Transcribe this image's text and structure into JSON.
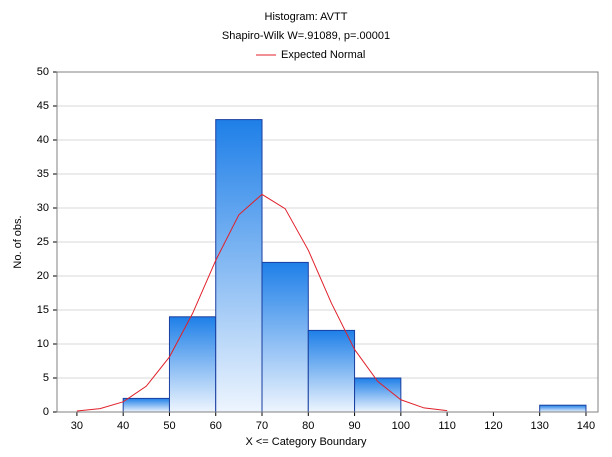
{
  "chart_data": {
    "type": "histogram",
    "title": "Histogram: AVTT",
    "subtitle": "Shapiro-Wilk W=.91089, p=.00001",
    "x_label": "X <= Category Boundary",
    "y_label": "No. of obs.",
    "bins": [
      40,
      50,
      60,
      70,
      80,
      90,
      100,
      110,
      120,
      130,
      140
    ],
    "counts": [
      2,
      14,
      43,
      22,
      12,
      5,
      0,
      0,
      0,
      1
    ],
    "color": "#1e7fe8",
    "series": [
      {
        "name": "Expected Normal",
        "color": "#e0202a",
        "x": [
          30,
          35,
          40,
          45,
          50,
          55,
          60,
          65,
          70,
          75,
          80,
          85,
          90,
          95,
          100,
          105,
          110
        ],
        "values": [
          0.15,
          0.5,
          1.5,
          3.8,
          8.1,
          14.5,
          22.3,
          29.0,
          32.0,
          29.9,
          23.8,
          16.0,
          9.2,
          4.5,
          1.8,
          0.6,
          0.2
        ]
      }
    ],
    "xlim": [
      25.7,
      142.6
    ],
    "xticks": [
      30,
      40,
      50,
      60,
      70,
      80,
      90,
      100,
      110,
      120,
      130,
      140
    ],
    "ylim": [
      0,
      50
    ],
    "yticks": [
      0,
      5,
      10,
      15,
      20,
      25,
      30,
      35,
      40,
      45,
      50
    ],
    "grid": true,
    "legend": "top"
  }
}
